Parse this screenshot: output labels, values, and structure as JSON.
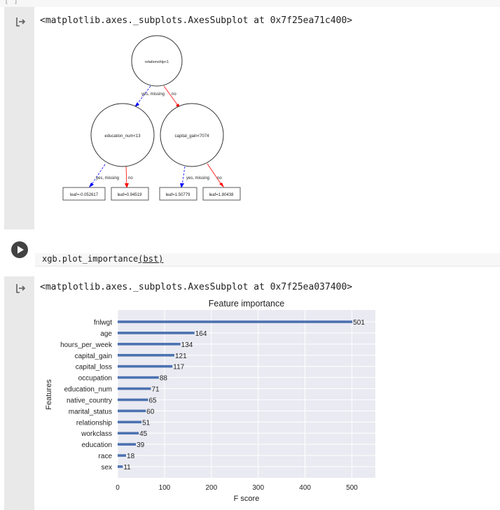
{
  "cell1": {
    "bracket": "[ ]",
    "output_repr": "<matplotlib.axes._subplots.AxesSubplot at 0x7f25ea71c400>",
    "tree": {
      "root": "relationship<1",
      "left_node": "education_num<13",
      "right_node": "capital_gain<7074",
      "root_edge_yes": "yes, missing",
      "root_edge_no": "no",
      "left_edge_yes": "yes, missing",
      "left_edge_no": "no",
      "right_edge_yes": "yes, missing",
      "right_edge_no": "no",
      "leaves": [
        "leaf=-0.052617",
        "leaf=0.94519",
        "leaf=1.50779",
        "leaf=1.80438"
      ],
      "yes_color": "#0000ff",
      "no_color": "#ff0000"
    }
  },
  "cell2": {
    "code_func": "xgb.plot_importance",
    "code_arg": "(bst)",
    "output_repr": "<matplotlib.axes._subplots.AxesSubplot at 0x7f25ea037400>"
  },
  "chart_data": {
    "type": "bar",
    "orientation": "horizontal",
    "title": "Feature importance",
    "xlabel": "F score",
    "ylabel": "Features",
    "categories": [
      "fnlwgt",
      "age",
      "hours_per_week",
      "capital_gain",
      "capital_loss",
      "occupation",
      "education_num",
      "native_country",
      "marital_status",
      "relationship",
      "workclass",
      "education",
      "race",
      "sex"
    ],
    "values": [
      501,
      164,
      134,
      121,
      117,
      88,
      71,
      65,
      60,
      51,
      45,
      39,
      18,
      11
    ],
    "xlim": [
      0,
      550
    ],
    "xticks": [
      0,
      100,
      200,
      300,
      400,
      500
    ],
    "grid": true,
    "bar_color": "#4c72b0",
    "axes_bg": "#eaeaf2"
  }
}
